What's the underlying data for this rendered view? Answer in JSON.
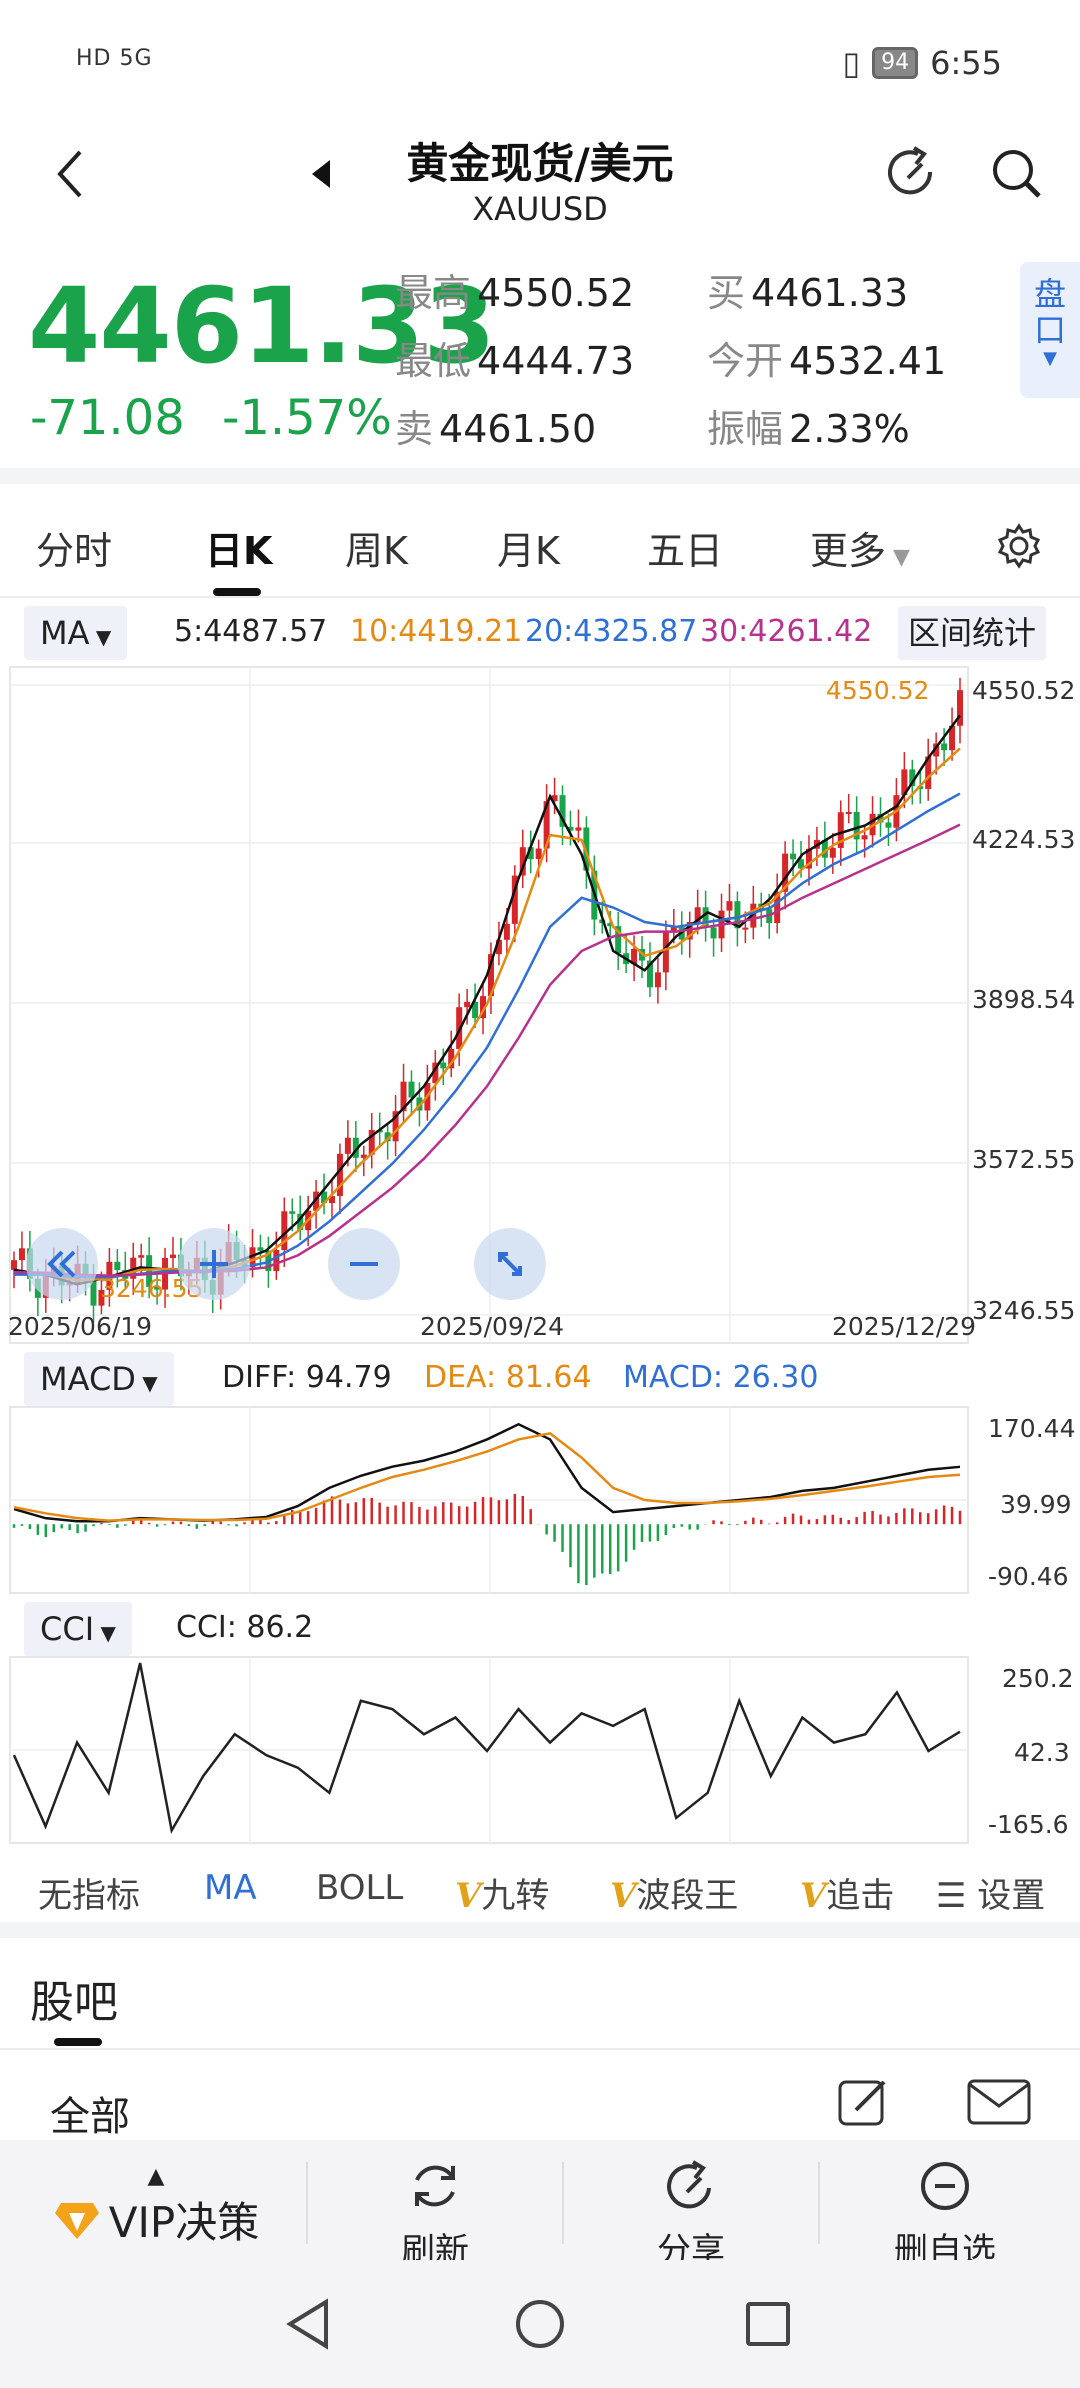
{
  "status": {
    "left": "HD 5G",
    "battery": "94",
    "time": "6:55"
  },
  "header": {
    "title": "黄金现货/美元",
    "symbol": "XAUUSD"
  },
  "quote": {
    "price": "4461.33",
    "change": "-71.08",
    "change_pct": "-1.57%",
    "high_label": "最高",
    "high": "4550.52",
    "low_label": "最低",
    "low": "4444.73",
    "sell_label": "卖",
    "sell": "4461.50",
    "buy_label": "买",
    "buy": "4461.33",
    "open_label": "今开",
    "open": "4532.41",
    "amp_label": "振幅",
    "amp": "2.33%",
    "pankou_1": "盘",
    "pankou_2": "口"
  },
  "tabs": [
    "分时",
    "日K",
    "周K",
    "月K",
    "五日",
    "更多"
  ],
  "ma": {
    "label": "MA",
    "ma5": "5:4487.57",
    "ma10": "10:4419.21",
    "ma20": "20:4325.87",
    "ma30": "30:4261.42",
    "range_stat": "区间统计"
  },
  "colors": {
    "up": "#d6262a",
    "down": "#1aa34a",
    "ma5": "#111111",
    "ma10": "#e48a12",
    "ma20": "#2f6fd6",
    "ma30": "#b8318c"
  },
  "kchart": {
    "y_ticks": [
      "4550.52",
      "4224.53",
      "3898.54",
      "3572.55",
      "3246.55"
    ],
    "high_label": "4550.52",
    "low_label": "3246.55",
    "dates": [
      "2025/06/19",
      "2025/09/24",
      "2025/12/29"
    ]
  },
  "macd": {
    "label": "MACD",
    "diff": "DIFF: 94.79",
    "dea": "DEA: 81.64",
    "macd": "MACD: 26.30",
    "y_ticks": [
      "170.44",
      "39.99",
      "-90.46"
    ]
  },
  "cci": {
    "label": "CCI",
    "value": "CCI: 86.2",
    "y_ticks": [
      "250.2",
      "42.3",
      "-165.6"
    ]
  },
  "indicator_tabs": [
    "无指标",
    "MA",
    "BOLL",
    "九转",
    "波段王",
    "追击",
    "设置"
  ],
  "guba": {
    "title": "股吧",
    "filter": "全部"
  },
  "bottom_bar": {
    "vip": "VIP决策",
    "refresh": "刷新",
    "share": "分享",
    "remove": "删自选"
  },
  "chart_data": [
    {
      "type": "line",
      "title": "",
      "xlabel": "",
      "ylabel": "",
      "x_labels": [
        "2025/06/19",
        "2025/09/24",
        "2025/12/29"
      ],
      "ylim": [
        3246.55,
        4550.52
      ],
      "series": [
        {
          "name": "5",
          "values": [
            3340,
            3330,
            3310,
            3325,
            3345,
            3340,
            3335,
            3355,
            3380,
            3440,
            3520,
            3600,
            3650,
            3720,
            3820,
            3950,
            4150,
            4320,
            4200,
            4000,
            3960,
            4030,
            4080,
            4050,
            4110,
            4200,
            4240,
            4260,
            4300,
            4400,
            4487.57
          ]
        },
        {
          "name": "10",
          "values": [
            3335,
            3332,
            3318,
            3322,
            3340,
            3342,
            3336,
            3348,
            3370,
            3420,
            3490,
            3560,
            3620,
            3690,
            3780,
            3890,
            4050,
            4240,
            4230,
            4050,
            3990,
            4010,
            4060,
            4070,
            4100,
            4170,
            4220,
            4250,
            4290,
            4360,
            4419.21
          ]
        },
        {
          "name": "20",
          "values": [
            3330,
            3330,
            3325,
            3325,
            3332,
            3338,
            3338,
            3342,
            3355,
            3390,
            3440,
            3500,
            3560,
            3630,
            3710,
            3800,
            3920,
            4050,
            4110,
            4090,
            4060,
            4050,
            4060,
            4070,
            4090,
            4140,
            4180,
            4210,
            4250,
            4290,
            4325.87
          ]
        },
        {
          "name": "30",
          "values": [
            3335,
            3334,
            3330,
            3328,
            3330,
            3334,
            3336,
            3338,
            3345,
            3370,
            3410,
            3460,
            3510,
            3570,
            3640,
            3720,
            3820,
            3930,
            4000,
            4030,
            4040,
            4040,
            4050,
            4060,
            4075,
            4110,
            4140,
            4170,
            4200,
            4230,
            4261.42
          ]
        }
      ]
    },
    {
      "type": "line",
      "title": "",
      "ylim": [
        -90.46,
        170.44
      ],
      "series": [
        {
          "name": "DIFF",
          "values": [
            25,
            10,
            5,
            5,
            10,
            8,
            6,
            8,
            12,
            30,
            60,
            80,
            95,
            105,
            120,
            140,
            165,
            140,
            60,
            20,
            25,
            30,
            35,
            40,
            45,
            55,
            60,
            70,
            80,
            90,
            94.79
          ]
        },
        {
          "name": "DEA",
          "values": [
            28,
            18,
            10,
            6,
            8,
            8,
            7,
            7,
            9,
            20,
            40,
            60,
            78,
            90,
            104,
            120,
            140,
            150,
            110,
            60,
            40,
            35,
            35,
            38,
            42,
            48,
            55,
            62,
            70,
            78,
            81.64
          ]
        }
      ]
    },
    {
      "type": "line",
      "title": "",
      "ylim": [
        -165.6,
        250.2
      ],
      "series": [
        {
          "name": "CCI",
          "values": [
            30,
            -140,
            60,
            -60,
            250,
            -150,
            -20,
            80,
            30,
            0,
            -60,
            160,
            140,
            80,
            120,
            40,
            140,
            60,
            130,
            100,
            140,
            -120,
            -60,
            160,
            -20,
            120,
            60,
            80,
            180,
            40,
            86.2
          ]
        }
      ]
    }
  ]
}
